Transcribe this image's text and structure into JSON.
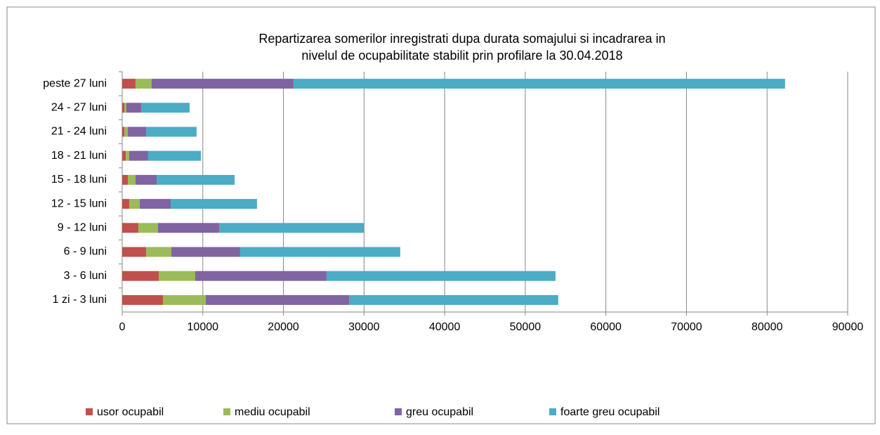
{
  "chart_data": {
    "type": "stacked-bar-horizontal",
    "title": [
      "Repartizarea somerilor inregistrati dupa  durata somajului si incadrarea in",
      "nivelul de ocupabilitate stabilit prin profilare la  30.04.2018"
    ],
    "categories": [
      "peste 27 luni",
      "24 - 27 luni",
      "21 - 24 luni",
      "18 - 21 luni",
      "15 - 18 luni",
      "12 - 15 luni",
      "9 - 12 luni",
      "6 - 9 luni",
      "3 - 6 luni",
      "1 zi - 3 luni"
    ],
    "series": [
      {
        "name": "usor ocupabil",
        "color": "#c0504d",
        "values": [
          1650,
          260,
          260,
          440,
          700,
          870,
          2000,
          2960,
          4530,
          5050
        ]
      },
      {
        "name": "mediu ocupabil",
        "color": "#9bbb59",
        "values": [
          2010,
          260,
          440,
          430,
          950,
          1310,
          2440,
          3140,
          4530,
          5320
        ]
      },
      {
        "name": "greu ocupabil",
        "color": "#8064a2",
        "values": [
          17590,
          1830,
          2260,
          2350,
          2620,
          3830,
          7580,
          8530,
          16290,
          17770
        ]
      },
      {
        "name": "foarte greu ocupabil",
        "color": "#4bacc6",
        "values": [
          60980,
          6010,
          6270,
          6540,
          9670,
          10710,
          17950,
          19860,
          28400,
          25950
        ]
      }
    ],
    "xlim": [
      0,
      90000
    ],
    "xticks": [
      0,
      10000,
      20000,
      30000,
      40000,
      50000,
      60000,
      70000,
      80000,
      90000
    ],
    "grid": true,
    "legend": "bottom"
  }
}
